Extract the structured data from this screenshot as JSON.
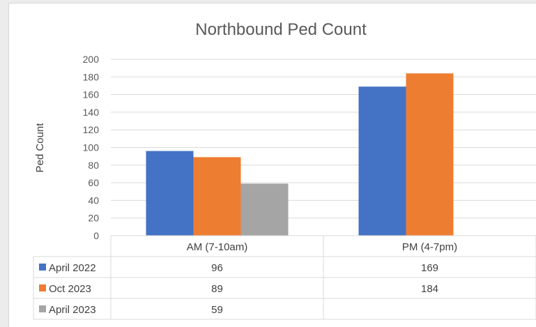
{
  "chart_data": {
    "type": "bar",
    "title": "Northbound Ped Count",
    "ylabel": "Ped Count",
    "xlabel": "",
    "ylim": [
      0,
      200
    ],
    "yticks": [
      0,
      20,
      40,
      60,
      80,
      100,
      120,
      140,
      160,
      180,
      200
    ],
    "grid": true,
    "legend": "data-table",
    "categories": [
      "AM (7-10am)",
      "PM (4-7pm)"
    ],
    "series": [
      {
        "name": "April 2022",
        "values": [
          96,
          169
        ],
        "color": "#4472c4"
      },
      {
        "name": "Oct 2023",
        "values": [
          89,
          184
        ],
        "color": "#ed7d31"
      },
      {
        "name": "April 2023",
        "values": [
          59,
          null
        ],
        "color": "#a5a5a5"
      }
    ]
  }
}
